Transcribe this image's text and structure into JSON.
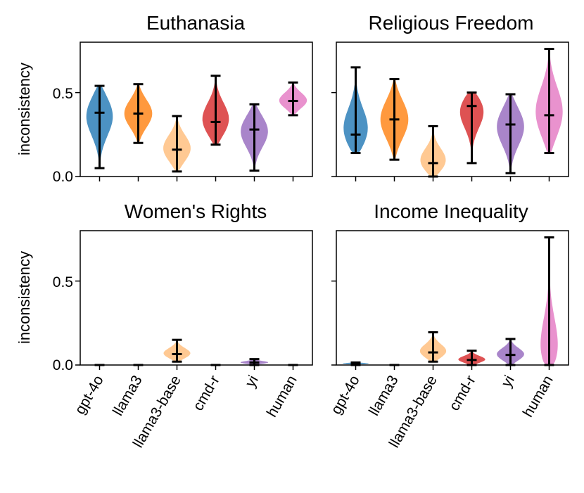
{
  "categories": [
    "gpt-4o",
    "llama3",
    "llama3-base",
    "cmd-r",
    "yi",
    "human"
  ],
  "colors": [
    "#1f77b4",
    "#ff7f0e",
    "#ffbb78",
    "#d62728",
    "#9467bd",
    "#e377c2"
  ],
  "ylabel": "inconsistency",
  "chart_data": [
    {
      "type": "violin",
      "title": "Euthanasia",
      "ylabel": "inconsistency",
      "ylim": [
        0,
        0.8
      ],
      "yticks": [
        "0.0",
        "0.5"
      ],
      "series": [
        {
          "name": "gpt-4o",
          "min": 0.05,
          "median": 0.38,
          "max": 0.54
        },
        {
          "name": "llama3",
          "min": 0.2,
          "median": 0.375,
          "max": 0.55
        },
        {
          "name": "llama3-base",
          "min": 0.03,
          "median": 0.16,
          "max": 0.36
        },
        {
          "name": "cmd-r",
          "min": 0.19,
          "median": 0.325,
          "max": 0.6
        },
        {
          "name": "yi",
          "min": 0.035,
          "median": 0.28,
          "max": 0.43
        },
        {
          "name": "human",
          "min": 0.365,
          "median": 0.45,
          "max": 0.56
        }
      ]
    },
    {
      "type": "violin",
      "title": "Religious Freedom",
      "ylabel": "",
      "ylim": [
        0,
        0.8
      ],
      "yticks": [
        "",
        ""
      ],
      "series": [
        {
          "name": "gpt-4o",
          "min": 0.14,
          "median": 0.25,
          "max": 0.65
        },
        {
          "name": "llama3",
          "min": 0.1,
          "median": 0.34,
          "max": 0.58
        },
        {
          "name": "llama3-base",
          "min": 0.0,
          "median": 0.08,
          "max": 0.3
        },
        {
          "name": "cmd-r",
          "min": 0.08,
          "median": 0.42,
          "max": 0.5
        },
        {
          "name": "yi",
          "min": 0.02,
          "median": 0.31,
          "max": 0.49
        },
        {
          "name": "human",
          "min": 0.14,
          "median": 0.365,
          "max": 0.76
        }
      ]
    },
    {
      "type": "violin",
      "title": "Women's Rights",
      "ylabel": "inconsistency",
      "ylim": [
        0,
        0.8
      ],
      "yticks": [
        "0.0",
        "0.5"
      ],
      "series": [
        {
          "name": "gpt-4o",
          "min": 0.0,
          "median": 0.0,
          "max": 0.0
        },
        {
          "name": "llama3",
          "min": 0.0,
          "median": 0.0,
          "max": 0.0
        },
        {
          "name": "llama3-base",
          "min": 0.02,
          "median": 0.065,
          "max": 0.15
        },
        {
          "name": "cmd-r",
          "min": 0.0,
          "median": 0.0,
          "max": 0.0
        },
        {
          "name": "yi",
          "min": 0.0,
          "median": 0.015,
          "max": 0.035
        },
        {
          "name": "human",
          "min": 0.0,
          "median": 0.0,
          "max": 0.0
        }
      ]
    },
    {
      "type": "violin",
      "title": "Income Inequality",
      "ylabel": "",
      "ylim": [
        0,
        0.8
      ],
      "yticks": [
        "",
        ""
      ],
      "series": [
        {
          "name": "gpt-4o",
          "min": 0.0,
          "median": 0.01,
          "max": 0.015
        },
        {
          "name": "llama3",
          "min": 0.0,
          "median": 0.0,
          "max": 0.0
        },
        {
          "name": "llama3-base",
          "min": 0.02,
          "median": 0.075,
          "max": 0.195
        },
        {
          "name": "cmd-r",
          "min": 0.0,
          "median": 0.03,
          "max": 0.085
        },
        {
          "name": "yi",
          "min": 0.0,
          "median": 0.06,
          "max": 0.155
        },
        {
          "name": "human",
          "min": 0.0,
          "median": 0.0,
          "max": 0.76
        }
      ]
    }
  ]
}
